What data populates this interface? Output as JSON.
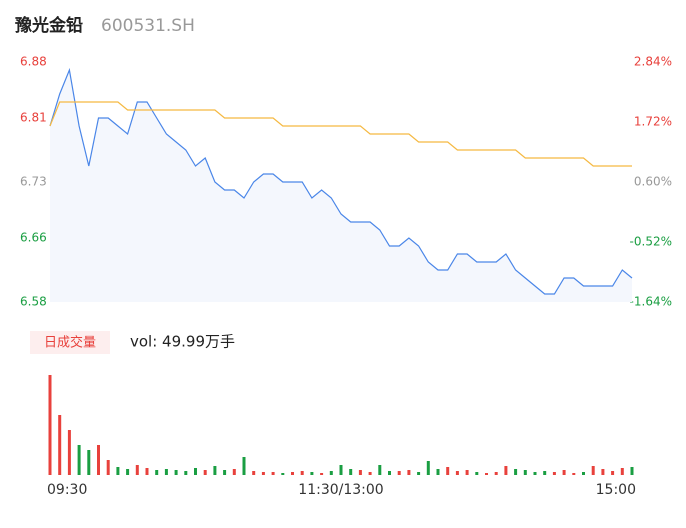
{
  "chart_data": {
    "type": "line",
    "title": "豫光金铅",
    "subtitle": "600531.SH",
    "x": [
      0,
      4,
      8,
      12,
      16,
      20,
      24,
      28,
      32,
      36,
      40,
      44,
      48,
      52,
      56,
      60,
      64,
      68,
      72,
      76,
      80,
      84,
      88,
      92,
      96,
      100,
      104,
      108,
      112,
      116,
      120,
      124,
      128,
      132,
      136,
      140,
      144,
      148,
      152,
      156,
      160,
      164,
      168,
      172,
      176,
      180,
      184,
      188,
      192,
      196,
      200,
      204,
      208,
      212,
      216,
      220,
      224,
      228,
      232,
      236,
      240
    ],
    "xlim": [
      0,
      240
    ],
    "xticks": [
      {
        "value": 0,
        "label": "09:30"
      },
      {
        "value": 120,
        "label": "11:30/13:00"
      },
      {
        "value": 240,
        "label": "15:00"
      }
    ],
    "ylim": [
      6.58,
      6.88
    ],
    "yticks": [
      6.88,
      6.81,
      6.73,
      6.66,
      6.58
    ],
    "y2lim": [
      -1.64,
      2.84
    ],
    "y2ticks": [
      {
        "value": 2.84,
        "label": "2.84%"
      },
      {
        "value": 1.72,
        "label": "1.72%"
      },
      {
        "value": 0.6,
        "label": "0.60%"
      },
      {
        "value": -0.52,
        "label": "-0.52%"
      },
      {
        "value": -1.64,
        "label": "-1.64%"
      }
    ],
    "tick_colors": [
      "#e8413c",
      "#e8413c",
      "#999999",
      "#1a9e42",
      "#1a9e42"
    ],
    "series": [
      {
        "color": "#4a86e8",
        "fill": "#f4f7fd",
        "values": [
          6.8,
          6.84,
          6.87,
          6.8,
          6.75,
          6.81,
          6.81,
          6.8,
          6.79,
          6.83,
          6.83,
          6.81,
          6.79,
          6.78,
          6.77,
          6.75,
          6.76,
          6.73,
          6.72,
          6.72,
          6.71,
          6.73,
          6.74,
          6.74,
          6.73,
          6.73,
          6.73,
          6.71,
          6.72,
          6.71,
          6.69,
          6.68,
          6.68,
          6.68,
          6.67,
          6.65,
          6.65,
          6.66,
          6.65,
          6.63,
          6.62,
          6.62,
          6.64,
          6.64,
          6.63,
          6.63,
          6.63,
          6.64,
          6.62,
          6.61,
          6.6,
          6.59,
          6.59,
          6.61,
          6.61,
          6.6,
          6.6,
          6.6,
          6.6,
          6.62,
          6.61
        ]
      },
      {
        "color": "#f5b942",
        "values": [
          6.8,
          6.83,
          6.83,
          6.83,
          6.83,
          6.83,
          6.83,
          6.83,
          6.82,
          6.82,
          6.82,
          6.82,
          6.82,
          6.82,
          6.82,
          6.82,
          6.82,
          6.82,
          6.81,
          6.81,
          6.81,
          6.81,
          6.81,
          6.81,
          6.8,
          6.8,
          6.8,
          6.8,
          6.8,
          6.8,
          6.8,
          6.8,
          6.8,
          6.79,
          6.79,
          6.79,
          6.79,
          6.79,
          6.78,
          6.78,
          6.78,
          6.78,
          6.77,
          6.77,
          6.77,
          6.77,
          6.77,
          6.77,
          6.77,
          6.76,
          6.76,
          6.76,
          6.76,
          6.76,
          6.76,
          6.76,
          6.75,
          6.75,
          6.75,
          6.75,
          6.75
        ]
      }
    ],
    "volume": {
      "label": "日成交量",
      "text": "vol: 49.99万手",
      "colors": {
        "up": "#e8413c",
        "down": "#1a9e42"
      },
      "values": [
        40000,
        24000,
        18000,
        12000,
        10000,
        12000,
        6000,
        3200,
        2400,
        4000,
        2800,
        2000,
        2400,
        2000,
        1600,
        2800,
        2000,
        3600,
        2000,
        2400,
        7200,
        1600,
        1200,
        1200,
        800,
        1200,
        1600,
        1200,
        800,
        1600,
        4000,
        2400,
        2000,
        1200,
        4000,
        1600,
        1600,
        2000,
        1200,
        5600,
        2400,
        3200,
        1600,
        2000,
        1200,
        800,
        1200,
        3600,
        2400,
        2000,
        1200,
        1600,
        1200,
        2000,
        800,
        1200,
        3600,
        2400,
        1600,
        2800,
        3200
      ]
    }
  }
}
